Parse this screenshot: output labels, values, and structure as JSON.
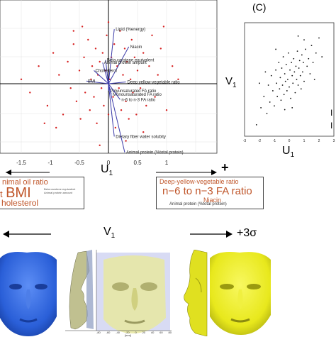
{
  "biplot": {
    "xticks": [
      "-1.5",
      "-1",
      "-0.5",
      "0",
      "0.5",
      "1"
    ],
    "xlabel_U": "U",
    "xlabel_sub": "1",
    "plus": "+",
    "minus": "−",
    "vectors": [
      {
        "label": "Lipid (%energy)",
        "x": 0.1,
        "y": 0.62
      },
      {
        "label": "Niacin",
        "x": 0.35,
        "y": 0.42
      },
      {
        "label": "Beta carotene equivalent",
        "x": -0.05,
        "y": 0.27
      },
      {
        "label": "Animal protein ampunt",
        "x": -0.1,
        "y": 0.24
      },
      {
        "label": "Cholesterol",
        "x": -0.25,
        "y": 0.15
      },
      {
        "label": "BMI",
        "x": -0.38,
        "y": 0.03
      },
      {
        "label": "Deep yellow-vegetable ratio",
        "x": 0.3,
        "y": 0.02
      },
      {
        "label": "Polyunsaturated FA ratio",
        "x": 0.0,
        "y": -0.08
      },
      {
        "label": "Monounsaturated FA ratio",
        "x": 0.05,
        "y": -0.12
      },
      {
        "label": "n-6 to n-3 FA ratio",
        "x": 0.2,
        "y": -0.18
      },
      {
        "label": "Dietary fiber water solubity",
        "x": 0.1,
        "y": -0.6
      },
      {
        "label": "Animal protein (%total protein)",
        "x": 0.28,
        "y": -0.78
      }
    ],
    "points": [
      [
        -1.5,
        0.05
      ],
      [
        -1.35,
        -0.1
      ],
      [
        -1.2,
        0.2
      ],
      [
        -1.05,
        -0.25
      ],
      [
        -0.95,
        0.35
      ],
      [
        -0.85,
        0.1
      ],
      [
        -0.78,
        -0.35
      ],
      [
        -0.7,
        0.25
      ],
      [
        -0.65,
        -0.05
      ],
      [
        -0.6,
        0.45
      ],
      [
        -0.55,
        -0.2
      ],
      [
        -0.5,
        0.15
      ],
      [
        -0.48,
        -0.4
      ],
      [
        -0.42,
        0.3
      ],
      [
        -0.4,
        -0.1
      ],
      [
        -0.35,
        0.5
      ],
      [
        -0.32,
        -0.3
      ],
      [
        -0.3,
        0.05
      ],
      [
        -0.28,
        0.2
      ],
      [
        -0.25,
        -0.15
      ],
      [
        -0.22,
        0.4
      ],
      [
        -0.2,
        -0.45
      ],
      [
        -0.18,
        0.1
      ],
      [
        -0.15,
        0.25
      ],
      [
        -0.12,
        -0.05
      ],
      [
        -0.1,
        0.35
      ],
      [
        -0.08,
        -0.25
      ],
      [
        -0.05,
        0.15
      ],
      [
        -0.03,
        0.55
      ],
      [
        0.0,
        -0.35
      ],
      [
        0.02,
        0.05
      ],
      [
        0.05,
        0.3
      ],
      [
        0.08,
        -0.15
      ],
      [
        0.1,
        0.45
      ],
      [
        0.12,
        -0.5
      ],
      [
        0.15,
        0.2
      ],
      [
        0.18,
        -0.05
      ],
      [
        0.2,
        0.6
      ],
      [
        0.22,
        -0.3
      ],
      [
        0.25,
        0.1
      ],
      [
        0.28,
        0.4
      ],
      [
        0.3,
        -0.2
      ],
      [
        0.32,
        0.25
      ],
      [
        0.35,
        -0.4
      ],
      [
        0.38,
        0.05
      ],
      [
        0.4,
        0.5
      ],
      [
        0.42,
        -0.1
      ],
      [
        0.45,
        0.3
      ],
      [
        0.48,
        -0.35
      ],
      [
        0.5,
        0.15
      ],
      [
        0.55,
        -0.05
      ],
      [
        0.6,
        0.35
      ],
      [
        0.65,
        -0.25
      ],
      [
        0.7,
        0.2
      ],
      [
        0.75,
        0.55
      ],
      [
        0.8,
        -0.15
      ],
      [
        0.85,
        0.1
      ],
      [
        0.9,
        0.4
      ],
      [
        1.0,
        -0.3
      ],
      [
        1.1,
        0.2
      ],
      [
        1.2,
        0.05
      ],
      [
        -0.9,
        -0.5
      ],
      [
        -0.6,
        0.6
      ],
      [
        0.0,
        0.7
      ],
      [
        0.3,
        -0.65
      ],
      [
        -0.45,
        0.65
      ],
      [
        0.6,
        -0.55
      ],
      [
        -1.1,
        -0.45
      ],
      [
        0.95,
        0.65
      ],
      [
        -0.15,
        -0.7
      ]
    ]
  },
  "panelC": {
    "label": "(C)",
    "xticks": [
      "-3",
      "-2",
      "-1",
      "0",
      "1",
      "2",
      "3"
    ],
    "xlabel_U": "U",
    "xlabel_sub": "1",
    "ylabel_V": "V",
    "ylabel_sub": "1",
    "side_marks": [
      "I",
      "I"
    ],
    "points": [
      [
        -2.2,
        -2.4
      ],
      [
        -1.9,
        -1.5
      ],
      [
        -1.7,
        -0.9
      ],
      [
        -1.5,
        -1.8
      ],
      [
        -1.4,
        -0.3
      ],
      [
        -1.3,
        -1.2
      ],
      [
        -1.2,
        0.2
      ],
      [
        -1.1,
        -0.6
      ],
      [
        -1.0,
        -1.4
      ],
      [
        -0.9,
        0.5
      ],
      [
        -0.85,
        -0.2
      ],
      [
        -0.8,
        -0.9
      ],
      [
        -0.7,
        0.9
      ],
      [
        -0.65,
        -0.5
      ],
      [
        -0.6,
        0.1
      ],
      [
        -0.55,
        -1.1
      ],
      [
        -0.5,
        0.6
      ],
      [
        -0.45,
        -0.3
      ],
      [
        -0.4,
        1.2
      ],
      [
        -0.35,
        -0.8
      ],
      [
        -0.3,
        0.3
      ],
      [
        -0.25,
        -0.1
      ],
      [
        -0.2,
        0.8
      ],
      [
        -0.15,
        -0.6
      ],
      [
        -0.1,
        0.0
      ],
      [
        -0.05,
        1.4
      ],
      [
        0.0,
        -0.4
      ],
      [
        0.05,
        0.5
      ],
      [
        0.1,
        -1.0
      ],
      [
        0.15,
        0.9
      ],
      [
        0.2,
        0.2
      ],
      [
        0.25,
        -0.2
      ],
      [
        0.3,
        1.1
      ],
      [
        0.35,
        0.4
      ],
      [
        0.4,
        -0.7
      ],
      [
        0.45,
        0.7
      ],
      [
        0.5,
        0.0
      ],
      [
        0.55,
        1.5
      ],
      [
        0.6,
        -0.3
      ],
      [
        0.65,
        0.6
      ],
      [
        0.7,
        1.0
      ],
      [
        0.75,
        0.2
      ],
      [
        0.8,
        -0.5
      ],
      [
        0.85,
        1.3
      ],
      [
        0.9,
        0.4
      ],
      [
        0.95,
        0.9
      ],
      [
        1.0,
        -0.1
      ],
      [
        1.1,
        1.6
      ],
      [
        1.2,
        0.7
      ],
      [
        1.3,
        1.1
      ],
      [
        1.4,
        0.3
      ],
      [
        1.5,
        1.8
      ],
      [
        1.6,
        0.9
      ],
      [
        1.8,
        1.4
      ],
      [
        2.0,
        2.2
      ],
      [
        2.2,
        1.2
      ],
      [
        -1.6,
        0.4
      ],
      [
        -0.3,
        -1.6
      ],
      [
        0.2,
        -1.5
      ],
      [
        1.0,
        2.1
      ],
      [
        -0.9,
        1.6
      ],
      [
        0.6,
        2.3
      ],
      [
        1.7,
        0.0
      ],
      [
        -2.0,
        -0.2
      ]
    ]
  },
  "legend_left": {
    "line1": "nimal oil ratio",
    "prefix": "t",
    "big": "BMI",
    "small": "Beta carotene equivalent\nAnimal protein amount",
    "line3": "holesterol"
  },
  "legend_right": {
    "line1": "Deep-yellow-vegetable ratio",
    "big": "n−6 to n−3 FA ratio",
    "niacin": "Niacin",
    "small": "Animal protein (%total protein)"
  },
  "bottom": {
    "v_label": "V",
    "v_sub": "1",
    "plus3": "+3σ",
    "axis_ticks": [
      "-80",
      "-60",
      "-40",
      "-20",
      "0",
      "20",
      "40",
      "60",
      "80"
    ],
    "axis_unit": "[mm]"
  },
  "colors": {
    "point_red": "#d62020",
    "vector_blue": "#3a3aa8",
    "face_blue": "#2a5fd8",
    "face_yellow": "#e8e81c",
    "label_orange": "#c0562a"
  }
}
